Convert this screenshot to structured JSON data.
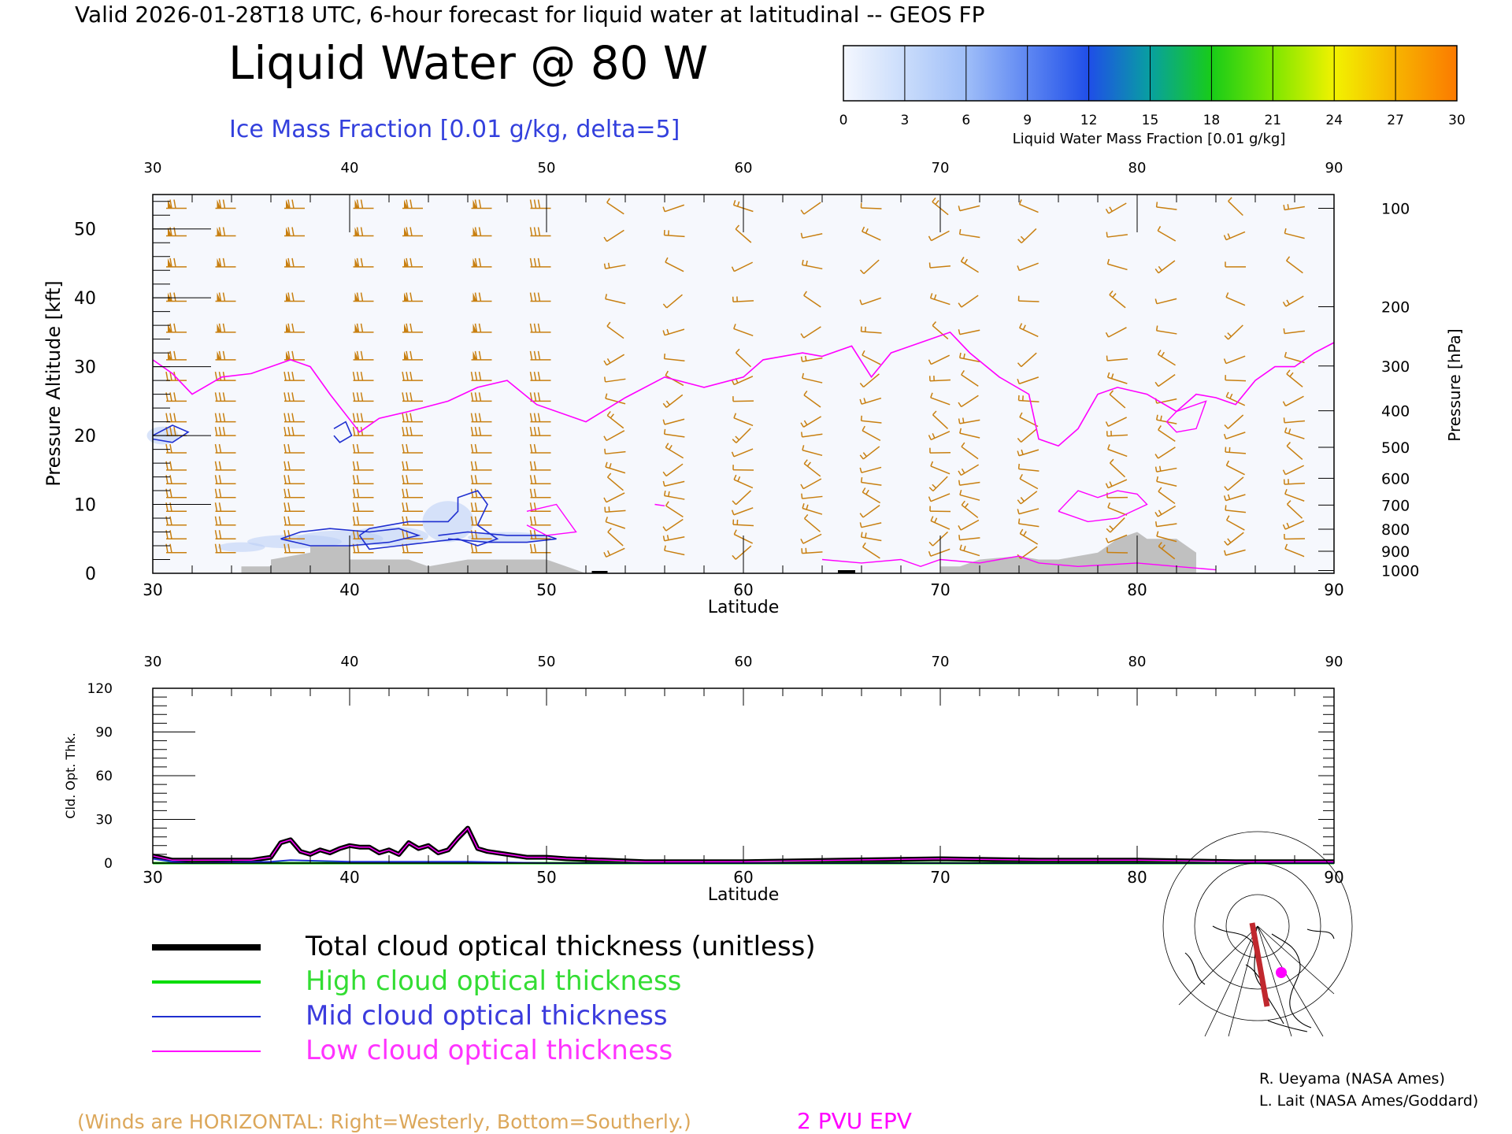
{
  "header": {
    "valid_line": "Valid 2026-01-28T18 UTC, 6-hour forecast for liquid water at latitudinal -- GEOS FP",
    "title": "Liquid Water @ 80 W",
    "subtitle": "Ice Mass Fraction [0.01 g/kg, delta=5]"
  },
  "colorbar": {
    "label": "Liquid Water Mass Fraction [0.01 g/kg]",
    "ticks": [
      "0",
      "3",
      "6",
      "9",
      "12",
      "15",
      "18",
      "21",
      "24",
      "27",
      "30"
    ],
    "colors": [
      "#f4f7fe",
      "#c9dcfb",
      "#9fbef8",
      "#5e87f2",
      "#1f4ee8",
      "#08a0a0",
      "#18cc18",
      "#7de600",
      "#f2f200",
      "#f7b400",
      "#fb7a00",
      "#ff2a00"
    ]
  },
  "chart_data": [
    {
      "type": "area",
      "name": "upper-cross-section",
      "xlabel": "Latitude",
      "ylabel": "Pressure Altitude [kft]",
      "ylabel_right": "Pressure [hPa]",
      "xlim": [
        30,
        90
      ],
      "ylim": [
        0,
        55
      ],
      "x_ticks": [
        "30",
        "40",
        "50",
        "60",
        "70",
        "80",
        "90"
      ],
      "y_ticks": [
        "0",
        "10",
        "20",
        "30",
        "40",
        "50"
      ],
      "pressure_ticks": [
        {
          "label": "100",
          "kft": 53.0
        },
        {
          "label": "200",
          "kft": 38.7
        },
        {
          "label": "300",
          "kft": 30.1
        },
        {
          "label": "400",
          "kft": 23.6
        },
        {
          "label": "500",
          "kft": 18.3
        },
        {
          "label": "600",
          "kft": 13.8
        },
        {
          "label": "700",
          "kft": 9.9
        },
        {
          "label": "800",
          "kft": 6.4
        },
        {
          "label": "900",
          "kft": 3.2
        },
        {
          "label": "1000",
          "kft": 0.4
        }
      ],
      "epv_2pvu_line": [
        [
          30,
          31
        ],
        [
          31,
          29
        ],
        [
          32,
          26
        ],
        [
          33.5,
          28.5
        ],
        [
          35,
          29
        ],
        [
          37,
          31
        ],
        [
          38,
          30
        ],
        [
          39,
          26
        ],
        [
          40.5,
          20.5
        ],
        [
          41.5,
          22.5
        ],
        [
          43,
          23.5
        ],
        [
          45,
          25
        ],
        [
          46.5,
          27
        ],
        [
          48,
          28
        ],
        [
          49.5,
          24.5
        ],
        [
          52,
          22
        ],
        [
          54,
          25.5
        ],
        [
          56,
          28.5
        ],
        [
          58,
          27
        ],
        [
          60,
          28.5
        ],
        [
          61,
          31
        ],
        [
          63,
          32
        ],
        [
          64,
          31.5
        ],
        [
          65.5,
          33
        ],
        [
          66.5,
          28.5
        ],
        [
          67.5,
          32
        ],
        [
          69,
          33.5
        ],
        [
          70.5,
          35
        ],
        [
          71.5,
          32
        ],
        [
          73,
          28.5
        ],
        [
          74.5,
          26
        ],
        [
          75,
          19.5
        ],
        [
          76,
          18.5
        ],
        [
          77,
          21
        ],
        [
          78,
          26
        ],
        [
          79,
          27
        ],
        [
          80.5,
          26
        ],
        [
          82,
          23.5
        ],
        [
          83,
          26
        ],
        [
          84,
          25.5
        ],
        [
          85,
          24.5
        ],
        [
          86,
          28
        ],
        [
          87,
          30
        ],
        [
          88,
          30
        ],
        [
          89,
          32
        ],
        [
          90,
          33.5
        ]
      ],
      "terrain": [
        [
          34.5,
          1
        ],
        [
          36,
          1
        ],
        [
          36,
          2
        ],
        [
          38,
          3
        ],
        [
          38,
          4
        ],
        [
          40,
          4
        ],
        [
          40,
          2
        ],
        [
          43,
          2
        ],
        [
          44,
          1
        ],
        [
          46,
          2
        ],
        [
          50,
          2
        ],
        [
          51,
          1
        ],
        [
          52,
          0
        ],
        [
          70,
          0
        ],
        [
          70,
          1
        ],
        [
          71,
          1
        ],
        [
          72,
          2
        ],
        [
          74,
          2.5
        ],
        [
          75,
          2
        ],
        [
          76,
          2
        ],
        [
          77,
          2.5
        ],
        [
          78,
          3
        ],
        [
          78.5,
          4
        ],
        [
          79,
          5
        ],
        [
          80,
          6
        ],
        [
          80.5,
          5
        ],
        [
          81,
          5
        ],
        [
          82,
          5
        ],
        [
          83,
          3
        ],
        [
          83,
          0
        ]
      ],
      "ice_contours": [
        [
          [
            40.5,
            5.5
          ],
          [
            41,
            6.5
          ],
          [
            42,
            7
          ],
          [
            43,
            7.5
          ],
          [
            45,
            7.5
          ],
          [
            45.5,
            9
          ],
          [
            45.5,
            11
          ],
          [
            46.5,
            12
          ],
          [
            47,
            10
          ],
          [
            46.5,
            7
          ],
          [
            47.5,
            5
          ],
          [
            46.5,
            4
          ],
          [
            45.5,
            5
          ],
          [
            44,
            4.5
          ],
          [
            42.5,
            4
          ],
          [
            41,
            3.5
          ],
          [
            40.5,
            5.5
          ]
        ],
        [
          [
            36.5,
            5
          ],
          [
            37.5,
            6
          ],
          [
            39,
            6.5
          ],
          [
            41,
            6
          ],
          [
            42.5,
            6.5
          ],
          [
            43.5,
            5.5
          ],
          [
            42,
            4.5
          ],
          [
            40,
            4
          ],
          [
            38,
            4
          ],
          [
            36.5,
            5
          ]
        ],
        [
          [
            44.5,
            5.5
          ],
          [
            46,
            6
          ],
          [
            48,
            5.5
          ],
          [
            50,
            5.5
          ],
          [
            50.5,
            5
          ],
          [
            49,
            4.5
          ],
          [
            47,
            4.5
          ],
          [
            45,
            5
          ]
        ],
        [
          [
            30,
            20
          ],
          [
            31,
            21.5
          ],
          [
            31.8,
            20.5
          ],
          [
            31,
            19
          ],
          [
            30,
            19.5
          ]
        ],
        [
          [
            39.2,
            21
          ],
          [
            39.8,
            22
          ],
          [
            40.1,
            20
          ],
          [
            39.5,
            19
          ],
          [
            39.2,
            20
          ]
        ]
      ],
      "low_cloud_contours": [
        [
          [
            49,
            9
          ],
          [
            50.5,
            10
          ],
          [
            51,
            8
          ],
          [
            51.5,
            6
          ],
          [
            50,
            5.5
          ],
          [
            49,
            7
          ]
        ],
        [
          [
            55.5,
            10
          ],
          [
            56,
            9.8
          ]
        ],
        [
          [
            64,
            2
          ],
          [
            66,
            1.5
          ],
          [
            68,
            2
          ],
          [
            69,
            1
          ],
          [
            70,
            2
          ],
          [
            72,
            1.5
          ],
          [
            74,
            2.5
          ],
          [
            75,
            1.5
          ],
          [
            77,
            1
          ],
          [
            80,
            1.5
          ],
          [
            82,
            1
          ],
          [
            84,
            0.5
          ]
        ],
        [
          [
            76,
            9
          ],
          [
            77,
            12
          ],
          [
            78,
            11
          ],
          [
            79,
            12
          ],
          [
            80,
            11.5
          ],
          [
            80.5,
            10
          ],
          [
            79,
            8
          ],
          [
            77.5,
            7.5
          ],
          [
            76,
            9
          ]
        ],
        [
          [
            81.5,
            22
          ],
          [
            82,
            23.5
          ],
          [
            83.5,
            25
          ],
          [
            83,
            21
          ],
          [
            82,
            20.5
          ],
          [
            81.5,
            22
          ]
        ]
      ],
      "wind_barb_columns_lat": [
        31,
        33.5,
        37,
        40.5,
        43,
        46.5,
        49.5,
        53.5,
        56.5,
        60,
        63.5,
        66.5,
        70,
        71.5,
        74.5,
        79,
        81.5,
        85,
        88
      ]
    },
    {
      "type": "line",
      "name": "lower-optical-thickness",
      "xlabel": "Latitude",
      "ylabel": "Cld. Opt. Thk.",
      "xlim": [
        30,
        90
      ],
      "ylim": [
        0,
        120
      ],
      "x_ticks": [
        "30",
        "40",
        "50",
        "60",
        "70",
        "80",
        "90"
      ],
      "y_ticks": [
        "0",
        "30",
        "60",
        "90",
        "120"
      ],
      "series": [
        {
          "name": "Total cloud optical thickness (unitless)",
          "color": "#000000",
          "x": [
            30,
            31,
            32,
            35,
            36,
            36.5,
            37,
            37.5,
            38,
            38.5,
            39,
            39.5,
            40,
            40.5,
            41,
            41.5,
            42,
            42.5,
            43,
            43.5,
            44,
            44.5,
            45,
            45.5,
            46,
            46.5,
            47,
            48,
            49,
            50,
            51,
            53,
            55,
            60,
            65,
            70,
            75,
            80,
            85,
            90
          ],
          "y": [
            5,
            2,
            2,
            2,
            4,
            14,
            16,
            8,
            6,
            9,
            7,
            10,
            12,
            11,
            11,
            7,
            9,
            6,
            14,
            10,
            12,
            7,
            9,
            17,
            24,
            10,
            8,
            6,
            4,
            4,
            3,
            2,
            1,
            1,
            2,
            3,
            2,
            2,
            1,
            1
          ]
        },
        {
          "name": "High cloud optical thickness",
          "color": "#00dd00",
          "x": [
            30,
            90
          ],
          "y": [
            0,
            0
          ]
        },
        {
          "name": "Mid cloud optical thickness",
          "color": "#1f2fd0",
          "x": [
            30,
            31,
            32,
            36,
            37,
            40,
            45,
            46,
            50,
            90
          ],
          "y": [
            3,
            1,
            0,
            1,
            2,
            1,
            1,
            1,
            0,
            0
          ]
        },
        {
          "name": "Low cloud optical thickness",
          "color": "#ff00ff",
          "x": [
            30,
            31,
            32,
            35,
            36,
            36.5,
            37,
            37.5,
            38,
            38.5,
            39,
            39.5,
            40,
            40.5,
            41,
            41.5,
            42,
            42.5,
            43,
            43.5,
            44,
            44.5,
            45,
            45.5,
            46,
            46.5,
            47,
            48,
            49,
            50,
            51,
            53,
            55,
            60,
            65,
            70,
            75,
            80,
            85,
            90
          ],
          "y": [
            5,
            2,
            2,
            2,
            4,
            14,
            16,
            8,
            6,
            9,
            7,
            10,
            12,
            11,
            11,
            7,
            9,
            6,
            14,
            10,
            12,
            7,
            9,
            17,
            24,
            10,
            8,
            6,
            4,
            4,
            3,
            2,
            1,
            1,
            2,
            3,
            2,
            2,
            1,
            1
          ]
        }
      ]
    }
  ],
  "legend": [
    {
      "label": "Total cloud optical thickness (unitless)",
      "color": "#000000",
      "text_color": "#000000"
    },
    {
      "label": "High cloud optical thickness",
      "color": "#00dd00",
      "text_color": "#33dd33"
    },
    {
      "label": "Mid cloud optical thickness",
      "color": "#1f2fd0",
      "text_color": "#3b3bdd"
    },
    {
      "label": "Low cloud optical thickness",
      "color": "#ff00ff",
      "text_color": "#ff33ff"
    }
  ],
  "notes": {
    "winds": "(Winds are HORIZONTAL: Right=Westerly, Bottom=Southerly.)",
    "epv": "2 PVU EPV",
    "credit_1": "R. Ueyama (NASA Ames)",
    "credit_2": "L. Lait (NASA Ames/Goddard)"
  },
  "colors": {
    "wind_barb": "#c87f10",
    "epv_line": "#ff00ff",
    "ice_contour": "#1f2fd0",
    "terrain": "#c0c0c0",
    "plot_bg": "#f6f8fd"
  }
}
